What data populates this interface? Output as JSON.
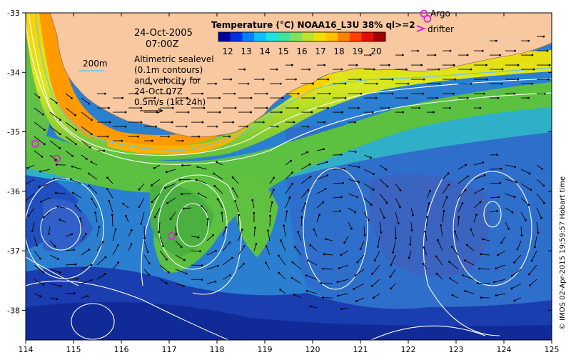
{
  "map": {
    "lon_ticks": [
      "114",
      "115",
      "116",
      "117",
      "118",
      "119",
      "120",
      "121",
      "122",
      "123",
      "124",
      "125"
    ],
    "lat_ticks": [
      "-33",
      "-34",
      "-35",
      "-36",
      "-37",
      "-38"
    ],
    "lon_range": [
      114,
      125
    ],
    "lat_range": [
      -33,
      -38.5
    ]
  },
  "annotation": {
    "date": "24-Oct-2005",
    "time": "07:00Z",
    "bathy_label": "200m",
    "note_line1": "Altimetric sealevel",
    "note_line2": "(0.1m contours)",
    "note_line3": "and velocity for",
    "note_line4": "24-Oct 07Z",
    "scale_label": "0.5m/s (1kt 24h)"
  },
  "colorbar": {
    "title": "Temperature (°C) NOAA16_L3U 38% ql>=2",
    "labels": [
      "12",
      "13",
      "14",
      "15",
      "16",
      "17",
      "18",
      "19",
      "20"
    ],
    "range": [
      12,
      21
    ]
  },
  "legend": {
    "argo_label": "Argo",
    "drifter_label": "drifter",
    "argo_color": "#e020e0",
    "drifter_color": "#e020e0"
  },
  "argo_floats": [
    {
      "lon": 114.2,
      "lat": -35.2
    },
    {
      "lon": 114.65,
      "lat": -35.45
    },
    {
      "lon": 117.05,
      "lat": -36.75
    },
    {
      "lon": 122.4,
      "lat": -33.1
    }
  ],
  "credit": "© IMOS 02-Apr-2015 19:59:57 Hobart time",
  "colors": {
    "land": "#f8c8a0",
    "contour": "#ffffff",
    "bathy": "#60c8e8",
    "vector": "#000000"
  }
}
